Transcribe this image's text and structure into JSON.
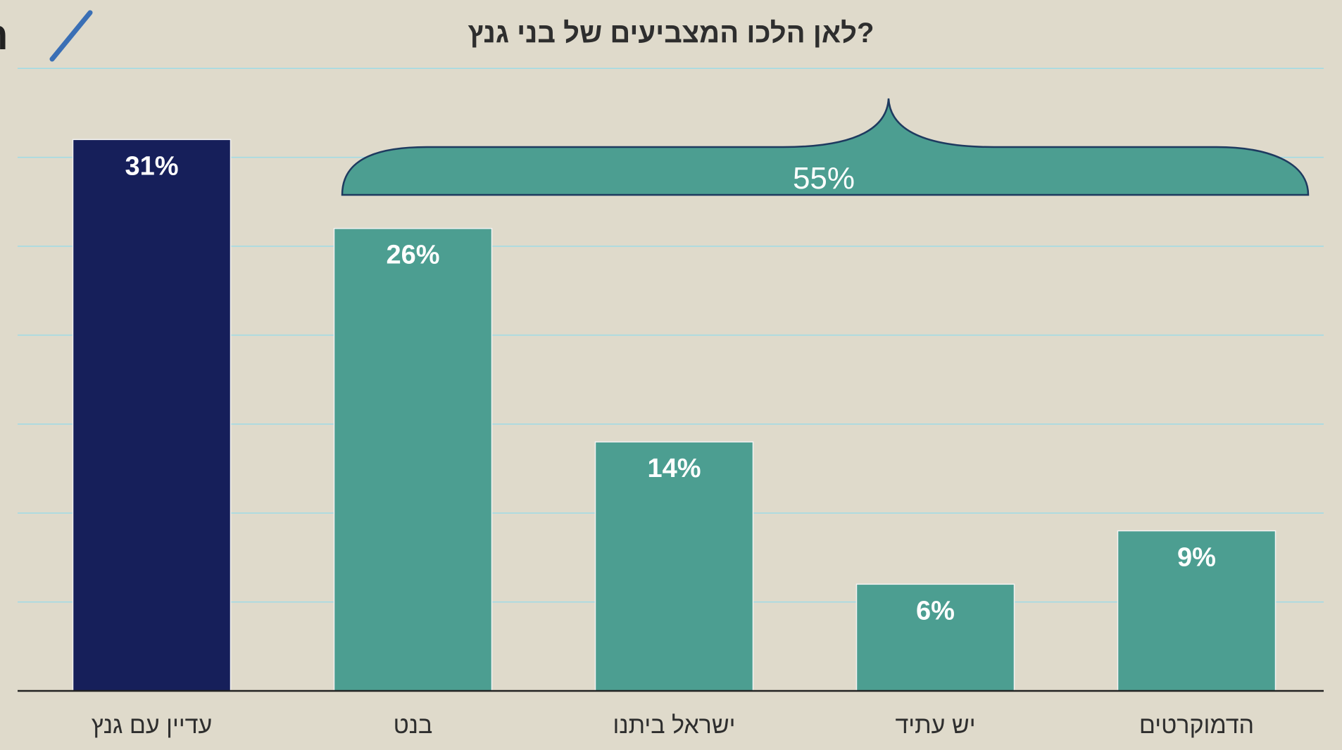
{
  "logo": {
    "text": "הדד",
    "mark_color": "#3a6fb5"
  },
  "colors": {
    "background": "#dfdacb",
    "gridline": "#9fdbe6",
    "axis": "#222222",
    "highlight_bar": "#161f5a",
    "bar": "#4c9e91",
    "brace_fill": "#4c9e91",
    "brace_stroke": "#1e3a5f"
  },
  "chart_data": {
    "type": "bar",
    "title": "לאן הלכו המצביעים של בני גנץ?",
    "direction": "rtl",
    "categories": [
      "הדמוקרטים",
      "יש עתיד",
      "ישראל ביתנו",
      "בנט",
      "עדיין עם גנץ"
    ],
    "values": [
      9,
      6,
      14,
      26,
      31
    ],
    "value_labels": [
      "9%",
      "6%",
      "14%",
      "26%",
      "31%"
    ],
    "highlight_category": "עדיין עם גנץ",
    "ylim": [
      0,
      35
    ],
    "grid": true,
    "y_ticks_shown": false,
    "annotation": {
      "type": "brace",
      "label": "55%",
      "spans_categories": [
        "הדמוקרטים",
        "יש עתיד",
        "ישראל ביתנו",
        "בנט"
      ]
    }
  }
}
